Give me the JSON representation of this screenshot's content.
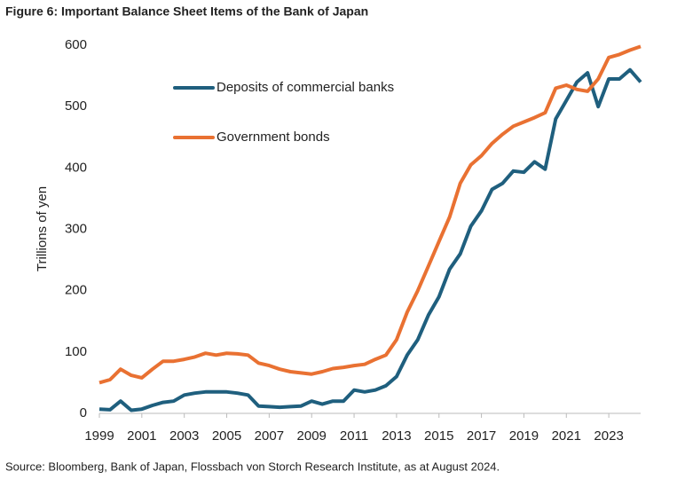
{
  "chart_data": {
    "type": "line",
    "title": "Figure 6: Important Balance Sheet Items of the Bank of Japan",
    "y_label": "Trillions of yen",
    "source": "Source: Bloomberg, Bank of Japan, Flossbach von Storch Research Institute, as at August 2024.",
    "x": [
      1999,
      1999.5,
      2000,
      2000.5,
      2001,
      2001.5,
      2002,
      2002.5,
      2003,
      2003.5,
      2004,
      2004.5,
      2005,
      2005.5,
      2006,
      2006.5,
      2007,
      2007.5,
      2008,
      2008.5,
      2009,
      2009.5,
      2010,
      2010.5,
      2011,
      2011.5,
      2012,
      2012.5,
      2013,
      2013.5,
      2014,
      2014.5,
      2015,
      2015.5,
      2016,
      2016.5,
      2017,
      2017.5,
      2018,
      2018.5,
      2019,
      2019.5,
      2020,
      2020.5,
      2021,
      2021.5,
      2022,
      2022.5,
      2023,
      2023.5,
      2024,
      2024.5
    ],
    "series": [
      {
        "name": "Deposits of commercial banks",
        "color": "#1f5f7e",
        "values": [
          7,
          6,
          20,
          5,
          7,
          13,
          18,
          20,
          30,
          33,
          35,
          35,
          35,
          33,
          30,
          12,
          11,
          10,
          11,
          12,
          20,
          15,
          20,
          20,
          38,
          35,
          38,
          45,
          60,
          95,
          120,
          160,
          190,
          235,
          260,
          305,
          330,
          365,
          375,
          395,
          393,
          410,
          398,
          480,
          510,
          540,
          555,
          500,
          545,
          545,
          560,
          540
        ]
      },
      {
        "name": "Government bonds",
        "color": "#e97132",
        "values": [
          50,
          55,
          72,
          62,
          58,
          72,
          85,
          85,
          88,
          92,
          98,
          95,
          98,
          97,
          95,
          82,
          78,
          72,
          68,
          66,
          64,
          68,
          73,
          75,
          78,
          80,
          88,
          95,
          120,
          165,
          200,
          240,
          280,
          320,
          375,
          405,
          420,
          440,
          455,
          468,
          475,
          482,
          490,
          530,
          535,
          528,
          525,
          545,
          580,
          585,
          592,
          598
        ]
      }
    ],
    "xlim": [
      1999,
      2024.5
    ],
    "xticks": [
      1999,
      2001,
      2003,
      2005,
      2007,
      2009,
      2011,
      2013,
      2015,
      2017,
      2019,
      2021,
      2023
    ],
    "ylim": [
      0,
      600
    ],
    "yticks": [
      0,
      100,
      200,
      300,
      400,
      500,
      600
    ],
    "grid": false,
    "legend": "top-left"
  }
}
